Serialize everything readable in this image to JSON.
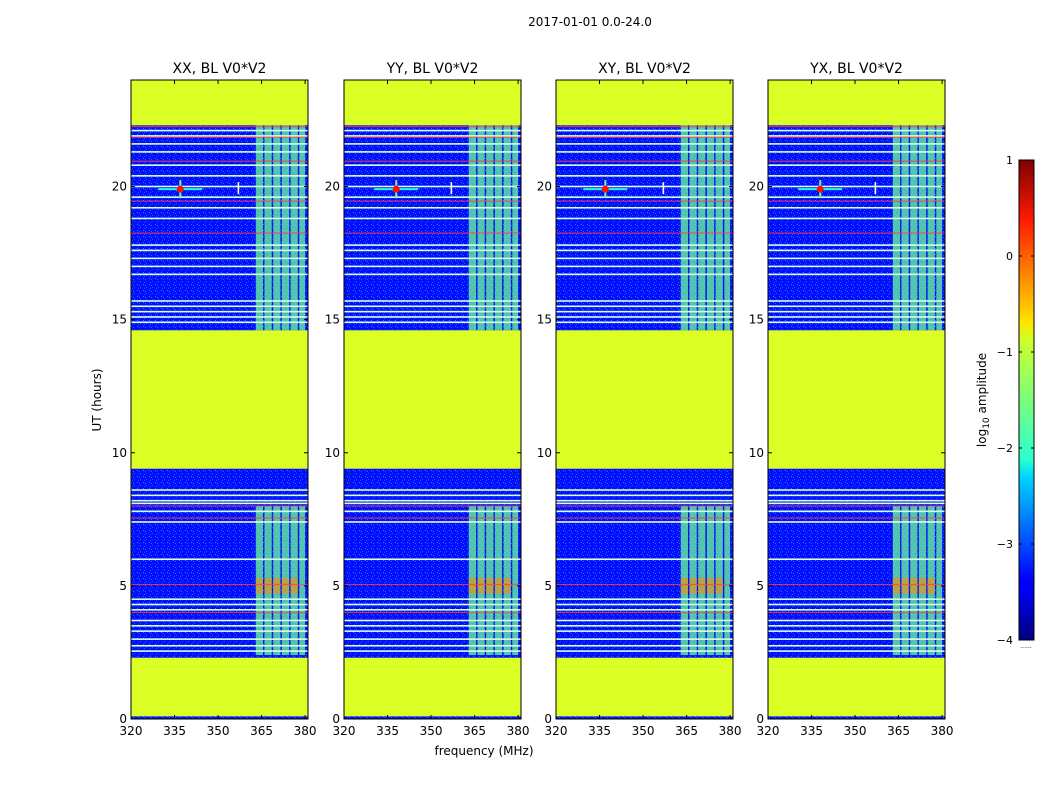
{
  "figure_title": "2017-01-01 0.0-24.0",
  "chart_data": {
    "type": "heatmap",
    "panels": [
      {
        "title": "XX, BL V0*V2",
        "burst_x": 337
      },
      {
        "title": "YY, BL V0*V2",
        "burst_x": 338
      },
      {
        "title": "XY, BL V0*V2",
        "burst_x": 337
      },
      {
        "title": "YX, BL V0*V2",
        "burst_x": 338
      }
    ],
    "xlabel": "frequency (MHz)",
    "ylabel": "UT (hours)",
    "xlim": [
      320,
      381
    ],
    "ylim": [
      0,
      24
    ],
    "xticks": [
      320,
      335,
      350,
      365,
      380
    ],
    "yticks": [
      0,
      5,
      10,
      15,
      20
    ],
    "colorbar": {
      "label_prefix": "log",
      "label_sub": "10",
      "label_suffix": " amplitude",
      "range": [
        -4,
        1
      ],
      "ticks": [
        1,
        0,
        -1,
        -2,
        -3,
        -4
      ],
      "tick_labels": [
        "1",
        "0",
        "−1",
        "−2",
        "−3",
        "−4"
      ],
      "footnote": "......"
    },
    "flagged_time_ranges_hours": [
      [
        0.1,
        2.3
      ],
      [
        9.4,
        14.6
      ],
      [
        22.3,
        24.0
      ]
    ],
    "background_log10_amplitude": -3.3,
    "flagged_log10_amplitude": -1.05,
    "bright_band_log10_amplitude": -1.6,
    "rfi_bands_mhz": [
      [
        363,
        365.5
      ],
      [
        366,
        368.5
      ],
      [
        369,
        371.5
      ],
      [
        372,
        374.5
      ],
      [
        375,
        377.5
      ],
      [
        378,
        380
      ]
    ],
    "rfi_active_time_ranges_hours": [
      [
        2.4,
        8.0
      ],
      [
        14.6,
        22.3
      ]
    ],
    "bright_row_hours": [
      2.55,
      2.75,
      3.0,
      3.3,
      3.5,
      3.7,
      4.1,
      4.3,
      4.5,
      6.0,
      7.4,
      7.8,
      8.1,
      8.2,
      8.4,
      8.6,
      14.9,
      15.1,
      15.3,
      15.5,
      15.7,
      16.7,
      17.0,
      17.3,
      17.6,
      17.8,
      18.8,
      19.2,
      19.6,
      20.0,
      20.4,
      20.8,
      21.3,
      21.6,
      21.9,
      22.1
    ],
    "red_row_hours": [
      4.0,
      5.05,
      7.55,
      8.0,
      18.25,
      19.45,
      20.95,
      21.85,
      22.25
    ],
    "burst": {
      "time_hours": 19.9,
      "peak_log10_amplitude": 0.3
    },
    "secondary_spike_mhz": 357,
    "hot_spot_time_hours": 5.0,
    "hot_spot_log10_amplitude": -0.3
  }
}
